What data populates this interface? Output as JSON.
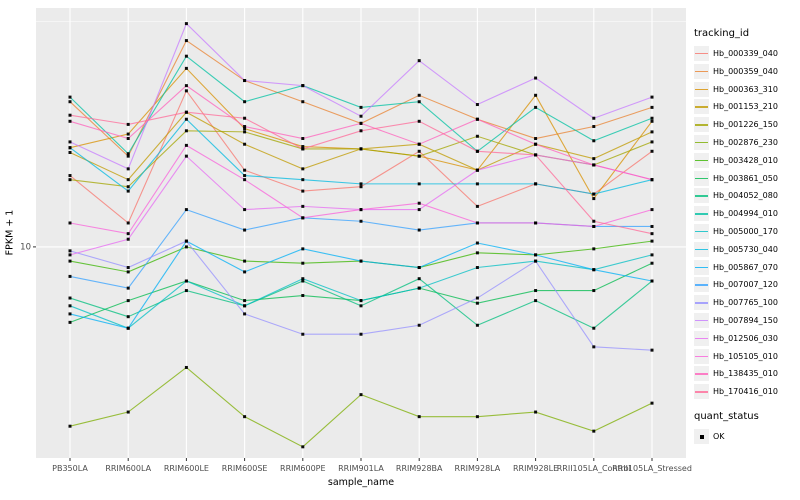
{
  "chart_data": {
    "type": "line",
    "title": "",
    "xlabel": "sample_name",
    "ylabel": "FPKM + 1",
    "y_scale": "log10",
    "ylim": [
      3.4,
      33.9
    ],
    "y_ticks": [
      10
    ],
    "y_minor_ticks": [
      31.62
    ],
    "grid": true,
    "panel_bg": "#EBEBEB",
    "grid_color": "#FFFFFF",
    "tick_color": "#333333",
    "tick_label_color": "#4D4D4D",
    "point_shape": "black-square",
    "point_color": "#000000",
    "categories": [
      "PB350LA",
      "RRIM600LA",
      "RRIM600LE",
      "RRIM600SE",
      "RRIM600PE",
      "RRIM901LA",
      "RRIM928BA",
      "RRIM928LA",
      "RRIM928LE",
      "RRII105LA_Control",
      "RRII105LA_Stressed"
    ],
    "series": [
      {
        "name": "Hb_000339_040",
        "color": "#F8766D",
        "values": [
          14.4,
          11.3,
          22.2,
          14.8,
          13.3,
          13.6,
          16.3,
          12.3,
          13.8,
          13.1,
          16.3
        ]
      },
      {
        "name": "Hb_000359_040",
        "color": "#EA8331",
        "values": [
          21.0,
          15.9,
          28.7,
          23.4,
          21.0,
          18.8,
          21.7,
          19.2,
          17.4,
          18.5,
          20.4
        ]
      },
      {
        "name": "Hb_000363_310",
        "color": "#D89000",
        "values": [
          16.6,
          17.8,
          24.9,
          18.3,
          16.7,
          16.5,
          15.9,
          14.8,
          21.7,
          12.8,
          19.0
        ]
      },
      {
        "name": "Hb_001153_210",
        "color": "#C09B00",
        "values": [
          16.2,
          14.1,
          19.9,
          16.9,
          14.9,
          16.5,
          16.9,
          14.8,
          16.9,
          15.7,
          18.0
        ]
      },
      {
        "name": "Hb_001226_150",
        "color": "#A3A500",
        "values": [
          14.1,
          13.6,
          18.1,
          18.0,
          16.5,
          16.5,
          15.9,
          17.6,
          16.0,
          15.2,
          17.1
        ]
      },
      {
        "name": "Hb_002876_230",
        "color": "#7CAE00",
        "values": [
          4.0,
          4.3,
          5.4,
          4.2,
          3.6,
          4.7,
          4.2,
          4.2,
          4.3,
          3.9,
          4.5
        ]
      },
      {
        "name": "Hb_003428_010",
        "color": "#39B600",
        "values": [
          9.3,
          8.8,
          10.0,
          9.3,
          9.2,
          9.3,
          9.0,
          9.7,
          9.6,
          9.9,
          10.3
        ]
      },
      {
        "name": "Hb_003861_050",
        "color": "#00BB4E",
        "values": [
          6.8,
          7.6,
          8.4,
          7.6,
          7.8,
          7.6,
          8.1,
          7.5,
          8.0,
          8.0,
          9.2
        ]
      },
      {
        "name": "Hb_004052_080",
        "color": "#00BF7D",
        "values": [
          7.7,
          7.0,
          8.0,
          7.4,
          8.4,
          7.4,
          8.5,
          6.7,
          7.6,
          6.6,
          8.4
        ]
      },
      {
        "name": "Hb_004994_010",
        "color": "#00C1A3",
        "values": [
          21.5,
          16.1,
          26.5,
          21.0,
          22.8,
          20.4,
          21.0,
          16.3,
          20.4,
          17.2,
          19.3
        ]
      },
      {
        "name": "Hb_005000_170",
        "color": "#00BFC4",
        "values": [
          7.4,
          6.6,
          8.4,
          7.4,
          8.5,
          7.6,
          8.1,
          9.0,
          9.3,
          8.9,
          9.6
        ]
      },
      {
        "name": "Hb_005730_040",
        "color": "#00BAE0",
        "values": [
          16.6,
          13.3,
          19.2,
          14.4,
          14.1,
          13.8,
          13.8,
          13.8,
          13.8,
          13.1,
          14.1
        ]
      },
      {
        "name": "Hb_005867_070",
        "color": "#00B0F6",
        "values": [
          7.1,
          6.6,
          10.3,
          8.8,
          9.9,
          9.3,
          9.0,
          10.2,
          9.6,
          8.9,
          8.4
        ]
      },
      {
        "name": "Hb_007007_120",
        "color": "#35A2FF",
        "values": [
          8.6,
          8.1,
          12.1,
          10.9,
          11.6,
          11.4,
          10.9,
          11.3,
          11.3,
          11.1,
          11.1
        ]
      },
      {
        "name": "Hb_007765_100",
        "color": "#9590FF",
        "values": [
          9.8,
          9.0,
          10.3,
          7.1,
          6.4,
          6.4,
          6.7,
          7.7,
          9.3,
          6.0,
          5.9
        ]
      },
      {
        "name": "Hb_007894_150",
        "color": "#C77CFF",
        "values": [
          17.1,
          14.9,
          31.3,
          23.4,
          22.8,
          19.5,
          25.9,
          20.7,
          23.7,
          19.3,
          21.5
        ]
      },
      {
        "name": "Hb_012506_030",
        "color": "#E76BF3",
        "values": [
          9.6,
          10.4,
          15.9,
          12.1,
          12.3,
          12.1,
          12.1,
          14.8,
          16.0,
          15.2,
          14.1
        ]
      },
      {
        "name": "Hb_105105_010",
        "color": "#FA62DB",
        "values": [
          11.3,
          10.7,
          16.8,
          14.1,
          11.6,
          12.1,
          12.5,
          11.3,
          11.3,
          11.1,
          12.1
        ]
      },
      {
        "name": "Hb_138435_010",
        "color": "#FF62BC",
        "values": [
          19.0,
          17.4,
          22.8,
          18.5,
          17.4,
          18.8,
          16.9,
          19.2,
          16.9,
          15.2,
          14.1
        ]
      },
      {
        "name": "Hb_170416_010",
        "color": "#FF6A98",
        "values": [
          19.6,
          18.7,
          19.9,
          19.3,
          16.5,
          18.1,
          19.0,
          16.3,
          16.0,
          11.4,
          10.7
        ]
      }
    ],
    "legend": {
      "color_title": "tracking_id",
      "shape_title": "quant_status",
      "shape_items": [
        "OK"
      ],
      "position": "right"
    }
  }
}
